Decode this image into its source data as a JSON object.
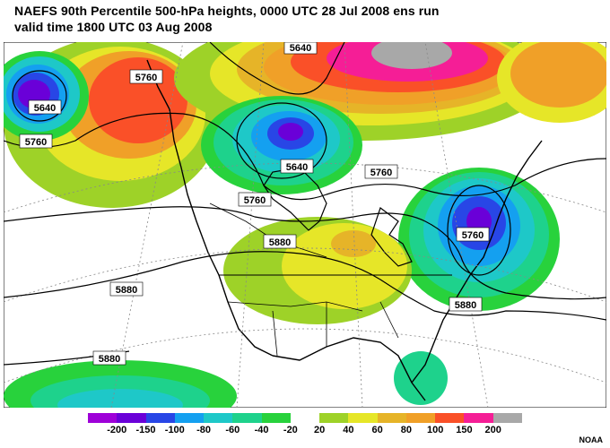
{
  "title_line1": "NAEFS 90th Percentile 500-hPa heights, 0000 UTC  28 Jul 2008 ens run",
  "title_line2": "valid time 1800 UTC  03 Aug 2008",
  "credit": "NOAA",
  "legend": {
    "colors": [
      "#9e00d8",
      "#6a00d8",
      "#2846e6",
      "#14a0f0",
      "#1ec8c8",
      "#1ed28c",
      "#28d23c",
      "#ffffff",
      "#9ed228",
      "#e6e628",
      "#e6b428",
      "#f0a028",
      "#fa5028",
      "#f51e96",
      "#a8a8a8"
    ],
    "labels": [
      "-200",
      "-150",
      "-100",
      "-80",
      "-60",
      "-40",
      "-20",
      "20",
      "40",
      "60",
      "80",
      "100",
      "150",
      "200"
    ]
  },
  "contour_labels": {
    "nw_5760": "5760",
    "pacific_5640": "5640",
    "pacific_5760": "5760",
    "top_5640": "5640",
    "hudson_5640": "5640",
    "hudson_5760": "5760",
    "canada_5760": "5760",
    "plains_5880": "5880",
    "east_5760": "5760",
    "west_5880": "5880",
    "se_5880": "5880",
    "pacific_s_5880": "5880"
  }
}
